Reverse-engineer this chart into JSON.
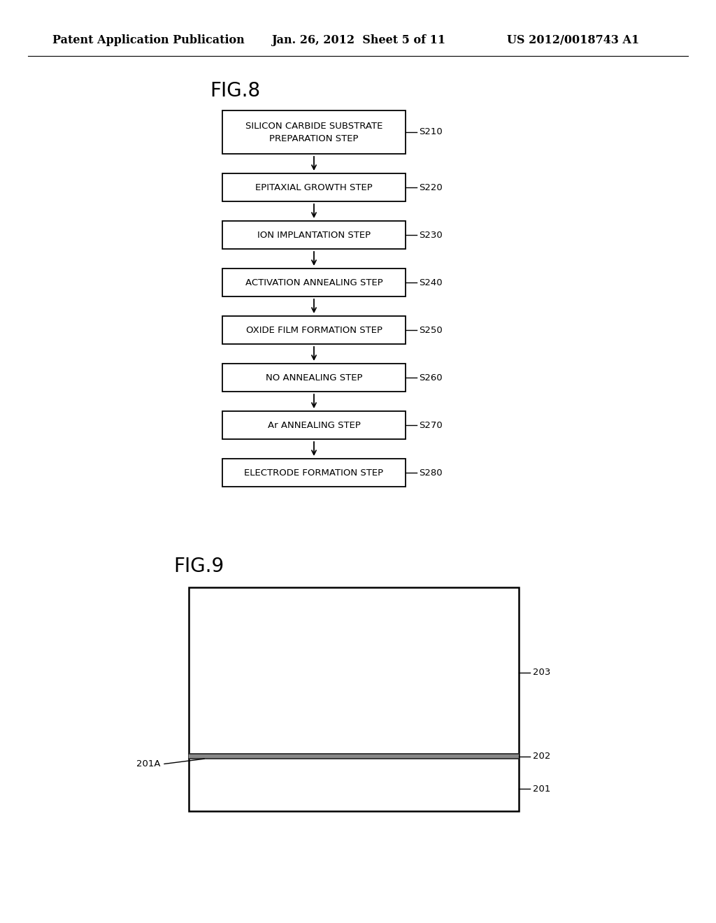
{
  "header_left": "Patent Application Publication",
  "header_center": "Jan. 26, 2012  Sheet 5 of 11",
  "header_right": "US 2012/0018743 A1",
  "fig8_label": "FIG.8",
  "fig9_label": "FIG.9",
  "flowchart_steps": [
    {
      "label": "SILICON CARBIDE SUBSTRATE\nPREPARATION STEP",
      "code": "S210"
    },
    {
      "label": "EPITAXIAL GROWTH STEP",
      "code": "S220"
    },
    {
      "label": "ION IMPLANTATION STEP",
      "code": "S230"
    },
    {
      "label": "ACTIVATION ANNEALING STEP",
      "code": "S240"
    },
    {
      "label": "OXIDE FILM FORMATION STEP",
      "code": "S250"
    },
    {
      "label": "NO ANNEALING STEP",
      "code": "S260"
    },
    {
      "label": "Ar ANNEALING STEP",
      "code": "S270"
    },
    {
      "label": "ELECTRODE FORMATION STEP",
      "code": "S280"
    }
  ],
  "fig9_annotation": "201A",
  "background_color": "#ffffff",
  "box_color": "#ffffff",
  "box_edge_color": "#000000",
  "text_color": "#000000",
  "line_color": "#000000"
}
